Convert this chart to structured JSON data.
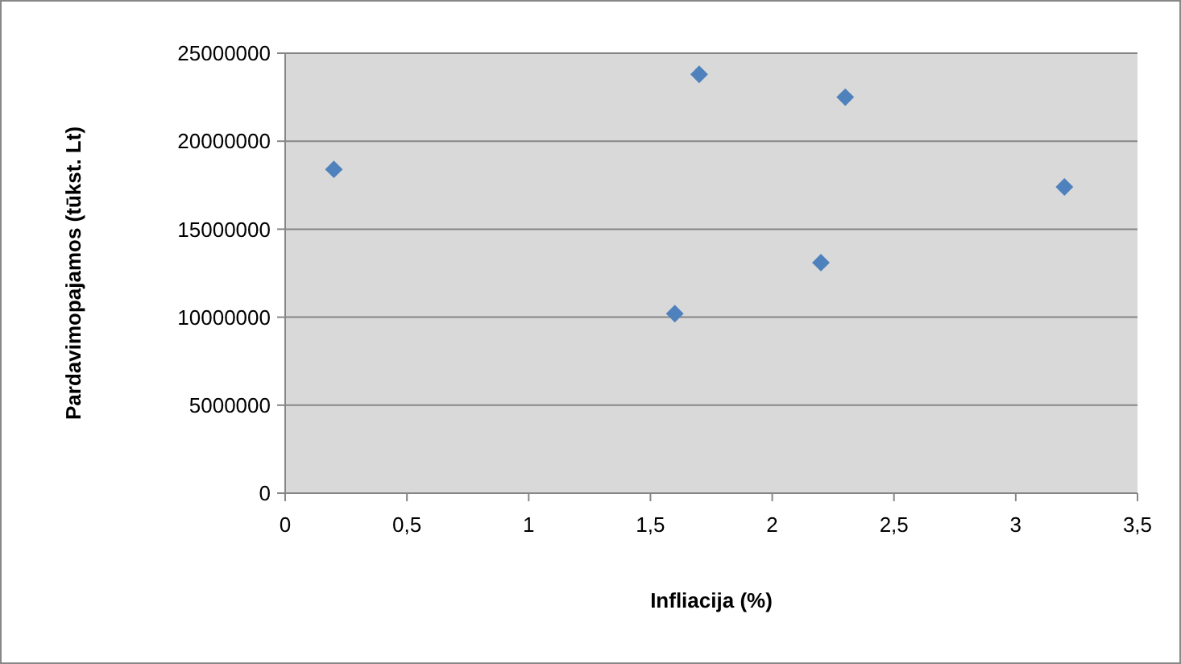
{
  "chart_data": {
    "type": "scatter",
    "xlabel": "Infliacija (%)",
    "ylabel": "Pardavimopajamos (tūkst. Lt)",
    "x": [
      0.2,
      1.7,
      2.3,
      3.2,
      2.2,
      1.6
    ],
    "series": [
      {
        "color": "#4f81bd",
        "values": [
          18400000,
          23800000,
          22500000,
          17400000,
          13100000,
          10200000
        ]
      }
    ],
    "xlim": [
      0,
      3.5
    ],
    "xticks": [
      0,
      {
        "value": 0.5,
        "label": "0,5"
      },
      1,
      {
        "value": 1.5,
        "label": "1,5"
      },
      2,
      {
        "value": 2.5,
        "label": "2,5"
      },
      3,
      {
        "value": 3.5,
        "label": "3,5"
      }
    ],
    "ylim": [
      0,
      25000000
    ],
    "yticks": [
      0,
      5000000,
      10000000,
      15000000,
      20000000,
      25000000
    ],
    "grid": "y",
    "marker": "diamond"
  }
}
